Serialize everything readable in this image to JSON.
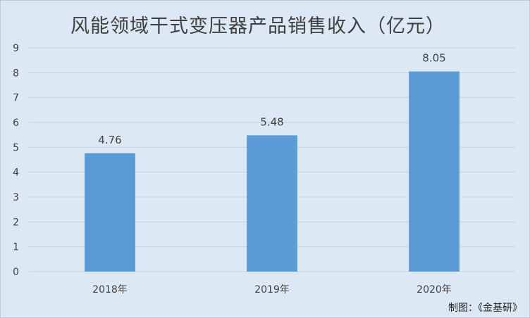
{
  "chart_data": {
    "type": "bar",
    "title": "风能领域干式变压器产品销售收入（亿元）",
    "categories": [
      "2018年",
      "2019年",
      "2020年"
    ],
    "values": [
      4.76,
      5.48,
      8.05
    ],
    "data_labels": [
      "4.76",
      "5.48",
      "8.05"
    ],
    "ylim": [
      0,
      9
    ],
    "yticks": [
      0,
      1,
      2,
      3,
      4,
      5,
      6,
      7,
      8,
      9
    ],
    "xlabel": "",
    "ylabel": "",
    "grid": true,
    "legend": "none",
    "bar_color": "#5b9bd5",
    "grid_color": "#c3d0dd"
  },
  "credit": "制图：《金基研》"
}
